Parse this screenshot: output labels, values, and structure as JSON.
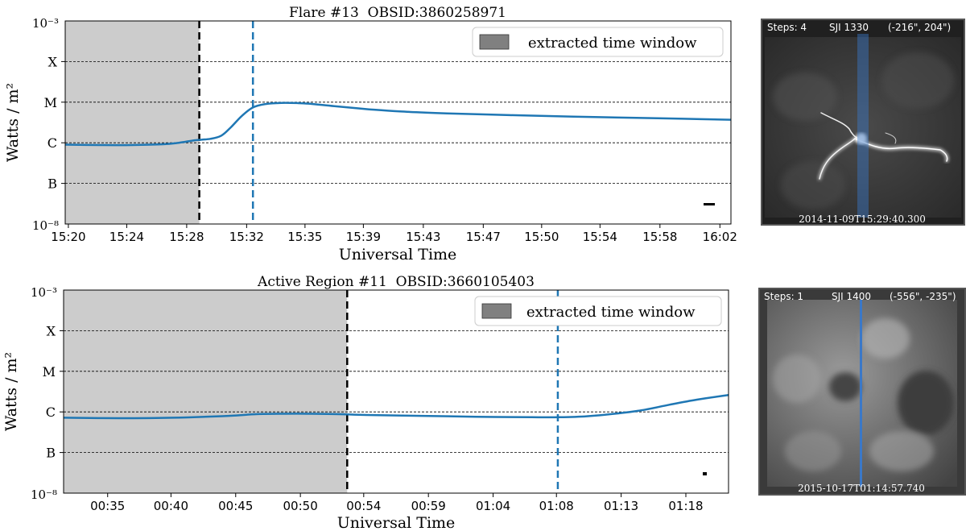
{
  "chart_data": [
    {
      "type": "line",
      "title": "Flare #13  OBSID:3860258971",
      "xlabel": "Universal Time",
      "ylabel": "Watts / m²",
      "y_scale": "log",
      "ylim": [
        1e-08,
        0.001
      ],
      "y_top_label": "10⁻³",
      "y_bottom_label": "10⁻⁸",
      "y_tick_labels": [
        "X",
        "M",
        "C",
        "B"
      ],
      "y_tick_values": [
        0.0001,
        1e-05,
        1e-06,
        1e-07
      ],
      "x_tick_labels": [
        "15:20",
        "15:24",
        "15:28",
        "15:32",
        "15:35",
        "15:39",
        "15:43",
        "15:47",
        "15:50",
        "15:54",
        "15:58",
        "16:02"
      ],
      "x_tick_minutes": [
        920.0,
        923.7,
        927.5,
        931.3,
        935.0,
        938.7,
        942.5,
        946.3,
        950.0,
        953.7,
        957.5,
        961.3
      ],
      "xlim_minutes": [
        919.8,
        962.0
      ],
      "shaded_window_minutes": [
        919.8,
        928.3
      ],
      "black_dashed_line_minute": 928.3,
      "blue_dashed_line_minute": 931.7,
      "legend": "extracted time window",
      "legend_position": "top-right",
      "line_color": "#1f77b4",
      "series": [
        {
          "x_minutes": [
            919.8,
            922,
            924,
            926,
            927,
            928,
            929,
            929.7,
            930.3,
            931,
            931.7,
            932.5,
            933.5,
            934.5,
            935.5,
            937,
            939,
            941,
            944,
            948,
            952,
            956,
            959,
            962
          ],
          "y": [
            9e-07,
            8.8e-07,
            8.8e-07,
            9.2e-07,
            1e-06,
            1.15e-06,
            1.25e-06,
            1.5e-06,
            2.4e-06,
            4.6e-06,
            7.4e-06,
            9e-06,
            9.6e-06,
            9.5e-06,
            9e-06,
            7.9e-06,
            6.7e-06,
            5.9e-06,
            5.3e-06,
            4.8e-06,
            4.4e-06,
            4.1e-06,
            3.9e-06,
            3.7e-06
          ]
        }
      ]
    },
    {
      "type": "line",
      "title": "Active Region #11  OBSID:3660105403",
      "xlabel": "Universal Time",
      "ylabel": "Watts / m²",
      "y_scale": "log",
      "ylim": [
        1e-08,
        0.001
      ],
      "y_top_label": "10⁻³",
      "y_bottom_label": "10⁻⁸",
      "y_tick_labels": [
        "X",
        "M",
        "C",
        "B"
      ],
      "y_tick_values": [
        0.0001,
        1e-05,
        1e-06,
        1e-07
      ],
      "x_tick_labels": [
        "00:35",
        "00:40",
        "00:45",
        "00:50",
        "00:54",
        "00:59",
        "01:04",
        "01:08",
        "01:13",
        "01:18"
      ],
      "x_tick_minutes": [
        35.2,
        39.8,
        44.5,
        49.2,
        53.8,
        58.5,
        63.2,
        67.8,
        72.5,
        77.2
      ],
      "xlim_minutes": [
        32.0,
        80.3
      ],
      "shaded_window_minutes": [
        32.0,
        52.6
      ],
      "black_dashed_line_minute": 52.6,
      "blue_dashed_line_minute": 67.9,
      "legend": "extracted time window",
      "legend_position": "top-right",
      "line_color": "#1f77b4",
      "series": [
        {
          "x_minutes": [
            32,
            36,
            40,
            44,
            46,
            48,
            50,
            52,
            54,
            58,
            62,
            66,
            68,
            70,
            72,
            74,
            76,
            78,
            80.3
          ],
          "y": [
            7.2e-07,
            7e-07,
            7.2e-07,
            8e-07,
            8.8e-07,
            9e-07,
            9e-07,
            8.8e-07,
            8.4e-07,
            8e-07,
            7.6e-07,
            7.4e-07,
            7.4e-07,
            7.8e-07,
            9e-07,
            1.1e-06,
            1.5e-06,
            2e-06,
            2.6e-06
          ]
        }
      ]
    }
  ],
  "images": [
    {
      "steps_label": "Steps: 4",
      "sji_label": "SJI 1330",
      "coords_label": "(-216\", 204\")",
      "timestamp": "2014-11-09T15:29:40.300"
    },
    {
      "steps_label": "Steps: 1",
      "sji_label": "SJI 1400",
      "coords_label": "(-556\", -235\")",
      "timestamp": "2015-10-17T01:14:57.740"
    }
  ]
}
